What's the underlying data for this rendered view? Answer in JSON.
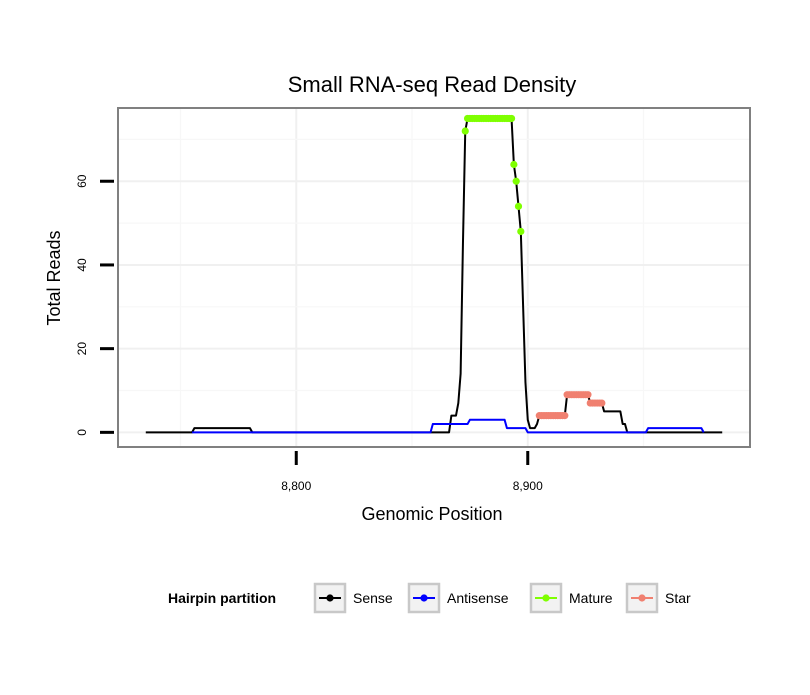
{
  "chart_data": {
    "type": "line",
    "title": "Small RNA-seq Read Density",
    "xlabel": "Genomic Position",
    "ylabel": "Total Reads",
    "xlim": [
      8723,
      8996
    ],
    "ylim": [
      -3.5,
      77.5
    ],
    "x_ticks": [
      8800,
      8900
    ],
    "x_tick_labels": [
      "8,800",
      "8,900"
    ],
    "y_ticks": [
      0,
      20,
      40,
      60
    ],
    "y_tick_labels": [
      "0",
      "20",
      "40",
      "60"
    ],
    "legend": {
      "title": "Hairpin partition",
      "position": "bottom",
      "entries": [
        "Sense",
        "Antisense",
        "Mature",
        "Star"
      ]
    },
    "series": [
      {
        "name": "Sense",
        "color": "#000000",
        "style": "line",
        "points": [
          [
            8735,
            0
          ],
          [
            8755,
            0
          ],
          [
            8756,
            1
          ],
          [
            8780,
            1
          ],
          [
            8781,
            0
          ],
          [
            8866,
            0
          ],
          [
            8867,
            4
          ],
          [
            8869,
            4
          ],
          [
            8870,
            7
          ],
          [
            8871,
            14
          ],
          [
            8872,
            45
          ],
          [
            8873,
            72
          ],
          [
            8874,
            75
          ],
          [
            8893,
            75
          ],
          [
            8894,
            64
          ],
          [
            8895,
            60
          ],
          [
            8896,
            54
          ],
          [
            8897,
            48
          ],
          [
            8898,
            30
          ],
          [
            8899,
            12
          ],
          [
            8900,
            3
          ],
          [
            8901,
            1
          ],
          [
            8903,
            1
          ],
          [
            8904,
            2
          ],
          [
            8905,
            4
          ],
          [
            8916,
            4
          ],
          [
            8917,
            9
          ],
          [
            8926,
            9
          ],
          [
            8927,
            7
          ],
          [
            8932,
            7
          ],
          [
            8933,
            5
          ],
          [
            8940,
            5
          ],
          [
            8941,
            2
          ],
          [
            8942,
            2
          ],
          [
            8943,
            0
          ],
          [
            8984,
            0
          ]
        ]
      },
      {
        "name": "Antisense",
        "color": "#0000ff",
        "style": "line",
        "points": [
          [
            8755,
            0
          ],
          [
            8781,
            0
          ],
          [
            8858,
            0
          ],
          [
            8859,
            2
          ],
          [
            8874,
            2
          ],
          [
            8875,
            3
          ],
          [
            8890,
            3
          ],
          [
            8891,
            1
          ],
          [
            8899,
            1
          ],
          [
            8900,
            0
          ],
          [
            8951,
            0
          ],
          [
            8952,
            1
          ],
          [
            8975,
            1
          ],
          [
            8976,
            0
          ]
        ]
      },
      {
        "name": "Mature",
        "color": "#7fff00",
        "style": "points",
        "points": [
          [
            8873,
            72
          ],
          [
            8874,
            75
          ],
          [
            8875,
            75
          ],
          [
            8876,
            75
          ],
          [
            8877,
            75
          ],
          [
            8878,
            75
          ],
          [
            8879,
            75
          ],
          [
            8880,
            75
          ],
          [
            8881,
            75
          ],
          [
            8882,
            75
          ],
          [
            8883,
            75
          ],
          [
            8884,
            75
          ],
          [
            8885,
            75
          ],
          [
            8886,
            75
          ],
          [
            8887,
            75
          ],
          [
            8888,
            75
          ],
          [
            8889,
            75
          ],
          [
            8890,
            75
          ],
          [
            8891,
            75
          ],
          [
            8892,
            75
          ],
          [
            8893,
            75
          ],
          [
            8894,
            64
          ],
          [
            8895,
            60
          ],
          [
            8896,
            54
          ],
          [
            8897,
            48
          ]
        ]
      },
      {
        "name": "Star",
        "color": "#f08070",
        "style": "points",
        "points": [
          [
            8905,
            4
          ],
          [
            8906,
            4
          ],
          [
            8907,
            4
          ],
          [
            8908,
            4
          ],
          [
            8909,
            4
          ],
          [
            8910,
            4
          ],
          [
            8911,
            4
          ],
          [
            8912,
            4
          ],
          [
            8913,
            4
          ],
          [
            8914,
            4
          ],
          [
            8915,
            4
          ],
          [
            8916,
            4
          ],
          [
            8917,
            9
          ],
          [
            8918,
            9
          ],
          [
            8919,
            9
          ],
          [
            8920,
            9
          ],
          [
            8921,
            9
          ],
          [
            8922,
            9
          ],
          [
            8923,
            9
          ],
          [
            8924,
            9
          ],
          [
            8925,
            9
          ],
          [
            8926,
            9
          ],
          [
            8927,
            7
          ],
          [
            8928,
            7
          ],
          [
            8929,
            7
          ],
          [
            8930,
            7
          ],
          [
            8931,
            7
          ],
          [
            8932,
            7
          ]
        ]
      }
    ]
  }
}
